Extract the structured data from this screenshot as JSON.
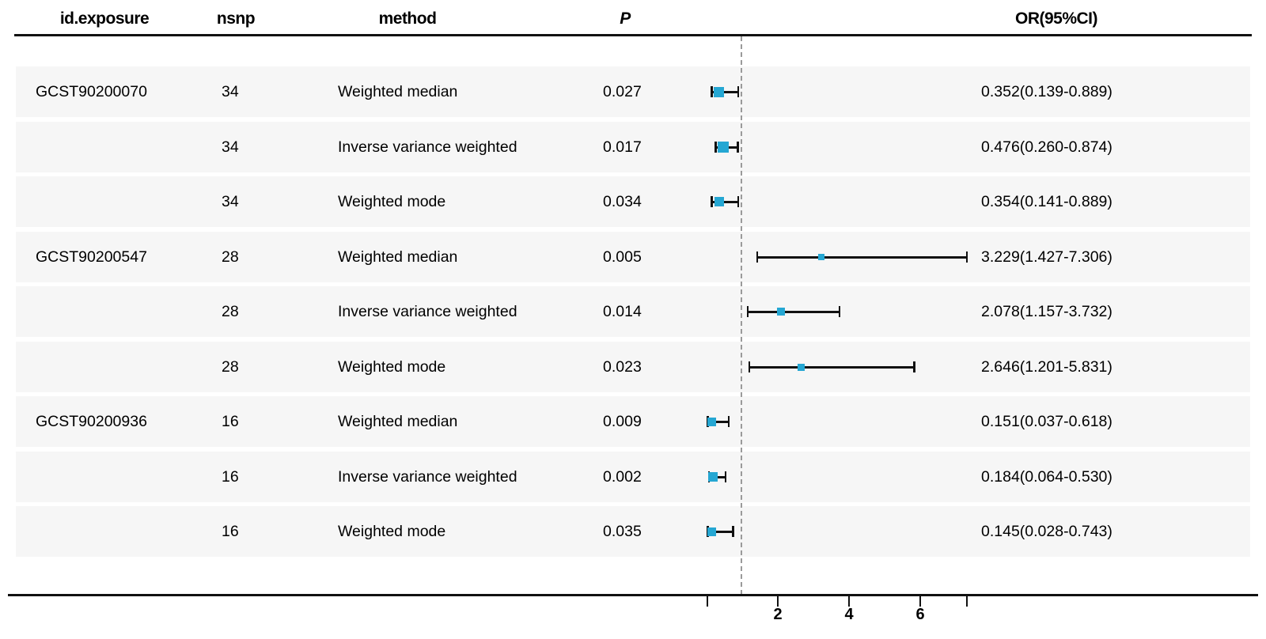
{
  "chart_data": {
    "type": "forest",
    "columns": [
      "id.exposure",
      "nsnp",
      "method",
      "P",
      "OR(95%CI)"
    ],
    "axis": {
      "tick_values": [
        2,
        4,
        6
      ],
      "tick_labels": [
        "2",
        "4",
        "6"
      ],
      "range": [
        0.028,
        7.306
      ],
      "reference_line": 1,
      "scale": "linear"
    },
    "style": {
      "marker_color": "#25a7d3",
      "band_color": "#f6f6f6",
      "ref_line_color": "#9a9a9a",
      "axis_color": "#111111"
    },
    "rows": [
      {
        "exposure": "GCST90200070",
        "nsnp": "34",
        "method": "Weighted median",
        "p": "0.027",
        "or": 0.352,
        "ci_low": 0.139,
        "ci_high": 0.889,
        "or_ci": "0.352(0.139-0.889)",
        "marker_size": 13
      },
      {
        "exposure": "",
        "nsnp": "34",
        "method": "Inverse variance weighted",
        "p": "0.017",
        "or": 0.476,
        "ci_low": 0.26,
        "ci_high": 0.874,
        "or_ci": "0.476(0.260-0.874)",
        "marker_size": 14
      },
      {
        "exposure": "",
        "nsnp": "34",
        "method": "Weighted mode",
        "p": "0.034",
        "or": 0.354,
        "ci_low": 0.141,
        "ci_high": 0.889,
        "or_ci": "0.354(0.141-0.889)",
        "marker_size": 12
      },
      {
        "exposure": "GCST90200547",
        "nsnp": "28",
        "method": "Weighted median",
        "p": "0.005",
        "or": 3.229,
        "ci_low": 1.427,
        "ci_high": 7.306,
        "or_ci": "3.229(1.427-7.306)",
        "marker_size": 8
      },
      {
        "exposure": "",
        "nsnp": "28",
        "method": "Inverse variance weighted",
        "p": "0.014",
        "or": 2.078,
        "ci_low": 1.157,
        "ci_high": 3.732,
        "or_ci": "2.078(1.157-3.732)",
        "marker_size": 10
      },
      {
        "exposure": "",
        "nsnp": "28",
        "method": "Weighted mode",
        "p": "0.023",
        "or": 2.646,
        "ci_low": 1.201,
        "ci_high": 5.831,
        "or_ci": "2.646(1.201-5.831)",
        "marker_size": 9
      },
      {
        "exposure": "GCST90200936",
        "nsnp": "16",
        "method": "Weighted median",
        "p": "0.009",
        "or": 0.151,
        "ci_low": 0.037,
        "ci_high": 0.618,
        "or_ci": "0.151(0.037-0.618)",
        "marker_size": 11
      },
      {
        "exposure": "",
        "nsnp": "16",
        "method": "Inverse variance weighted",
        "p": "0.002",
        "or": 0.184,
        "ci_low": 0.064,
        "ci_high": 0.53,
        "or_ci": "0.184(0.064-0.530)",
        "marker_size": 12
      },
      {
        "exposure": "",
        "nsnp": "16",
        "method": "Weighted mode",
        "p": "0.035",
        "or": 0.145,
        "ci_low": 0.028,
        "ci_high": 0.743,
        "or_ci": "0.145(0.028-0.743)",
        "marker_size": 11
      }
    ]
  }
}
